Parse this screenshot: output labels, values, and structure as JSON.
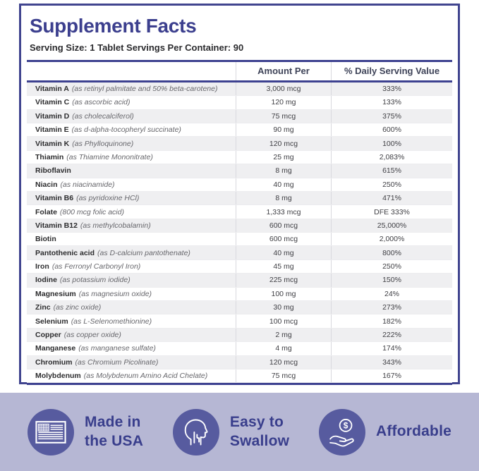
{
  "header": {
    "title": "Supplement Facts",
    "serving_info": "Serving Size: 1 Tablet Servings Per Container: 90"
  },
  "table": {
    "amount_header": "Amount Per",
    "dv_header": "% Daily Serving Value",
    "rows": [
      {
        "name": "Vitamin A",
        "detail": "(as retinyl palmitate and 50% beta-carotene)",
        "amount": "3,000 mcg",
        "dv": "333%"
      },
      {
        "name": "Vitamin C",
        "detail": "(as ascorbic acid)",
        "amount": "120 mg",
        "dv": "133%"
      },
      {
        "name": "Vitamin D",
        "detail": "(as cholecalciferol)",
        "amount": "75 mcg",
        "dv": "375%"
      },
      {
        "name": "Vitamin E",
        "detail": "(as d-alpha-tocopheryl succinate)",
        "amount": "90 mg",
        "dv": "600%"
      },
      {
        "name": "Vitamin K",
        "detail": "(as Phylloquinone)",
        "amount": "120 mcg",
        "dv": "100%"
      },
      {
        "name": "Thiamin",
        "detail": "(as Thiamine Mononitrate)",
        "amount": "25 mg",
        "dv": "2,083%"
      },
      {
        "name": "Riboflavin",
        "detail": "",
        "amount": "8 mg",
        "dv": "615%"
      },
      {
        "name": "Niacin",
        "detail": "(as niacinamide)",
        "amount": "40 mg",
        "dv": "250%"
      },
      {
        "name": "Vitamin B6",
        "detail": "(as pyridoxine HCl)",
        "amount": "8 mg",
        "dv": "471%"
      },
      {
        "name": "Folate",
        "detail": "(800 mcg folic acid)",
        "amount": "1,333 mcg",
        "dv": "DFE 333%"
      },
      {
        "name": "Vitamin B12",
        "detail": "(as methylcobalamin)",
        "amount": "600 mcg",
        "dv": "25,000%"
      },
      {
        "name": "Biotin",
        "detail": "",
        "amount": "600 mcg",
        "dv": "2,000%"
      },
      {
        "name": "Pantothenic acid",
        "detail": "(as D-calcium pantothenate)",
        "amount": "40 mg",
        "dv": "800%"
      },
      {
        "name": "Iron",
        "detail": "(as Ferronyl Carbonyl Iron)",
        "amount": "45 mg",
        "dv": "250%"
      },
      {
        "name": "Iodine",
        "detail": "(as potassium iodide)",
        "amount": "225 mcg",
        "dv": "150%"
      },
      {
        "name": "Magnesium",
        "detail": "(as magnesium oxide)",
        "amount": "100 mg",
        "dv": "24%"
      },
      {
        "name": "Zinc",
        "detail": "(as zinc oxide)",
        "amount": "30 mg",
        "dv": "273%"
      },
      {
        "name": "Selenium",
        "detail": "(as L-Selenomethionine)",
        "amount": "100 mcg",
        "dv": "182%"
      },
      {
        "name": "Copper",
        "detail": "(as copper oxide)",
        "amount": "2 mg",
        "dv": "222%"
      },
      {
        "name": "Manganese",
        "detail": "(as manganese sulfate)",
        "amount": "4 mg",
        "dv": "174%"
      },
      {
        "name": "Chromium",
        "detail": "(as Chromium Picolinate)",
        "amount": "120 mcg",
        "dv": "343%"
      },
      {
        "name": "Molybdenum",
        "detail": "(as Molybdenum Amino Acid Chelate)",
        "amount": "75 mcg",
        "dv": "167%"
      }
    ]
  },
  "footer": {
    "badges": [
      {
        "icon": "usa-flag-icon",
        "label": "Made in\nthe USA"
      },
      {
        "icon": "swallow-icon",
        "label": "Easy to\nSwallow"
      },
      {
        "icon": "affordable-icon",
        "label": "Affordable"
      }
    ]
  },
  "colors": {
    "accent_indigo": "#3c3f8e",
    "rule_indigo": "#3d4190",
    "badge_circle": "#575b9f",
    "footer_background": "#b6b7d4",
    "row_stripe": "#efeff1"
  }
}
